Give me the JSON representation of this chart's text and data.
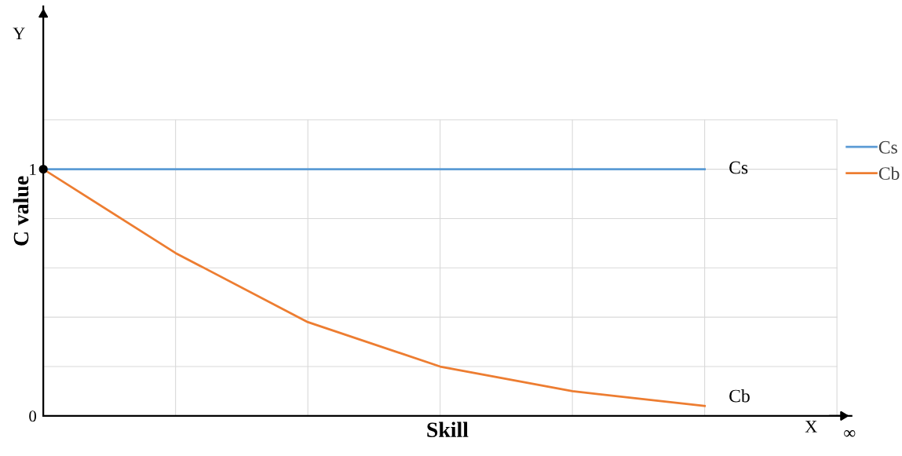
{
  "chart_data": {
    "type": "line",
    "xlabel": "Skill",
    "ylabel": "C value",
    "categories": [
      null,
      null,
      null,
      null,
      null,
      null,
      null
    ],
    "series": [
      {
        "name": "Cs",
        "color": "#5b9bd5",
        "values": [
          1,
          1,
          1,
          1,
          1,
          1,
          null
        ]
      },
      {
        "name": "Cb",
        "color": "#ed7d31",
        "values": [
          1,
          0.66,
          0.38,
          0.2,
          0.1,
          0.04,
          null
        ]
      },
      {
        "type": "scatter",
        "marker": "circle",
        "color": "#000000",
        "values": [
          1,
          null,
          null,
          null,
          null,
          null,
          null
        ]
      }
    ],
    "ylim": [
      0,
      1.66
    ],
    "yticks": [
      0,
      {
        "value": 0.2,
        "label": null
      },
      {
        "value": 0.4,
        "label": null
      },
      {
        "value": 0.6,
        "label": null
      },
      {
        "value": 0.8,
        "label": null
      },
      1,
      {
        "value": 1.2,
        "label": null
      }
    ],
    "grid": true,
    "legend": "right",
    "marker": "none",
    "annotations": [
      "Y",
      "X",
      "∞"
    ]
  }
}
